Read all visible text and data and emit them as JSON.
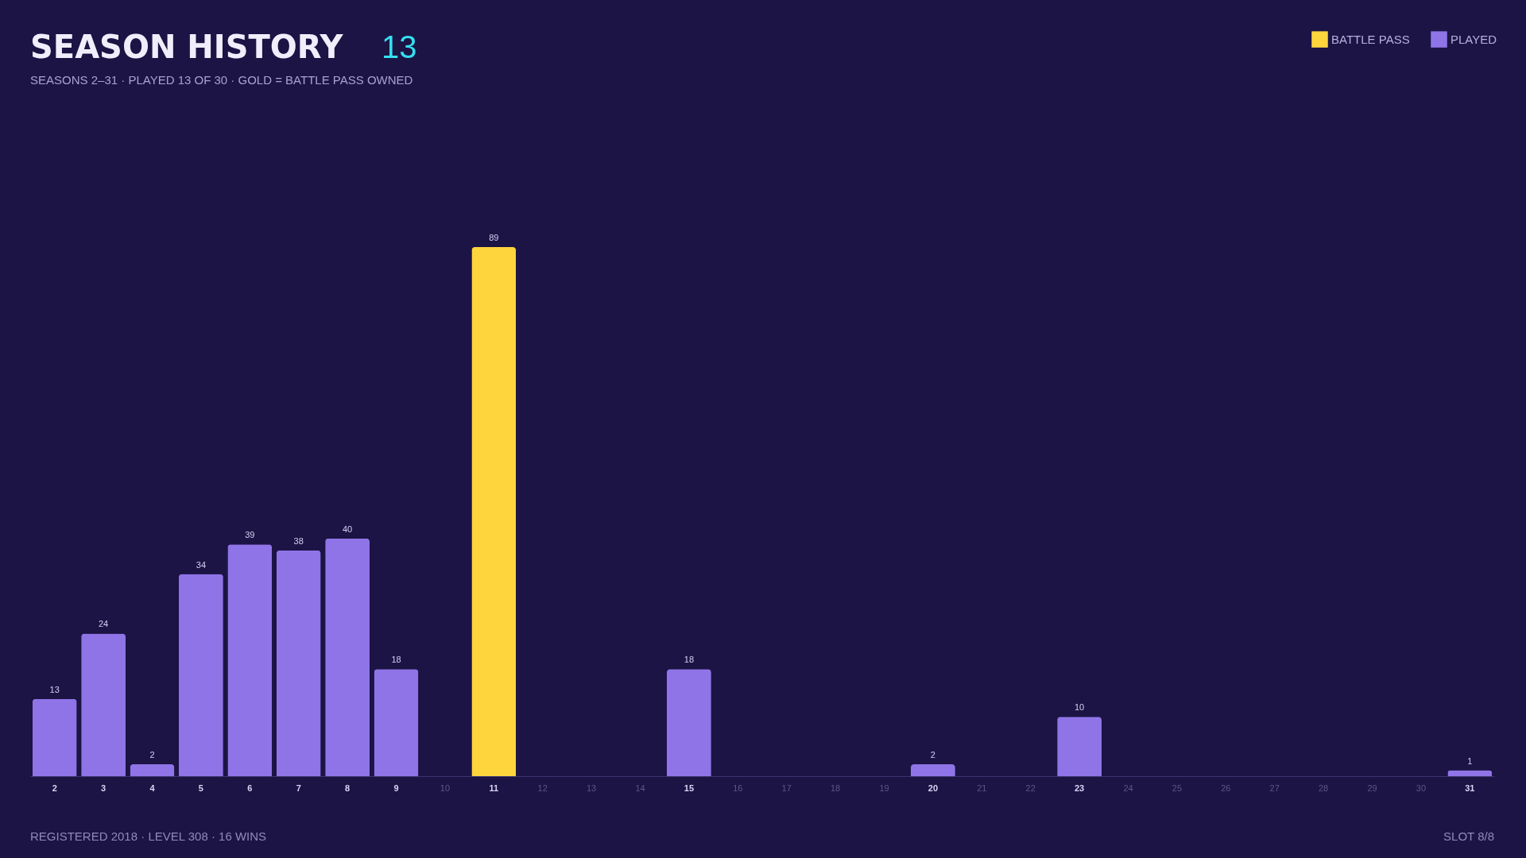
{
  "chart_data": {
    "type": "bar",
    "title": "SEASON HISTORY",
    "subtitle": "SEASONS 2–31 · PLAYED 13 OF 30 · GOLD = BATTLE PASS OWNED",
    "categories": [
      "2",
      "3",
      "4",
      "5",
      "6",
      "7",
      "8",
      "9",
      "10",
      "11",
      "12",
      "13",
      "14",
      "15",
      "16",
      "17",
      "18",
      "19",
      "20",
      "21",
      "22",
      "23",
      "24",
      "25",
      "26",
      "27",
      "28",
      "29",
      "30",
      "31"
    ],
    "series": [
      {
        "name": "BATTLE PASS",
        "color": "#ffd53d",
        "values": [
          null,
          null,
          null,
          null,
          null,
          null,
          null,
          null,
          null,
          89,
          null,
          null,
          null,
          null,
          null,
          null,
          null,
          null,
          null,
          null,
          null,
          null,
          null,
          null,
          null,
          null,
          null,
          null,
          null,
          null
        ]
      },
      {
        "name": "PLAYED",
        "color": "#8f74e8",
        "values": [
          13,
          24,
          2,
          34,
          39,
          38,
          40,
          18,
          null,
          null,
          null,
          null,
          null,
          18,
          null,
          null,
          null,
          null,
          2,
          null,
          null,
          10,
          null,
          null,
          null,
          null,
          null,
          null,
          null,
          1
        ]
      }
    ],
    "data_labels": true,
    "legend": "top right",
    "annotations": [
      "13",
      "REGISTERED 2018 · LEVEL 308 · 16 WINS",
      "SLOT 8/8"
    ]
  }
}
